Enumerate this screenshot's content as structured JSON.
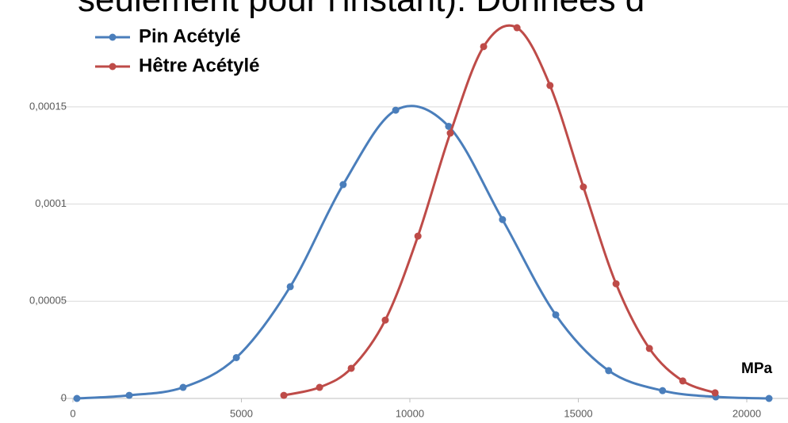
{
  "chart_data": {
    "type": "scatter",
    "caption": "seulement pour l'instant). Données d",
    "x_label": "MPa",
    "xlim": [
      0,
      21000
    ],
    "xticks": [
      0,
      5000,
      10000,
      15000,
      20000
    ],
    "ylim": [
      0,
      0.0002
    ],
    "yticks": [
      0,
      {
        "value": 5e-05,
        "label": "0,00005"
      },
      {
        "value": 0.0001,
        "label": "0,0001"
      },
      {
        "value": 0.00015,
        "label": "0,00015"
      }
    ],
    "grid": true,
    "legend": "top-left",
    "series": [
      {
        "name": "Pin Acétylé",
        "color": "#4a7ebb",
        "x": [
          118,
          1670,
          3270,
          4850,
          6450,
          8020,
          9580,
          11150,
          12750,
          14330,
          15900,
          17500,
          19080,
          20660
        ],
        "values": [
          0,
          1.6e-06,
          5.7e-06,
          2.1e-05,
          5.75e-05,
          0.00011,
          0.0001483,
          0.00014,
          9.2e-05,
          4.3e-05,
          1.43e-05,
          4e-06,
          8e-07,
          0
        ]
      },
      {
        "name": "Hêtre Acétylé",
        "color": "#be4b48",
        "x": [
          6260,
          7320,
          8260,
          9270,
          10240,
          11200,
          12190,
          13180,
          14160,
          15150,
          16120,
          17110,
          18100,
          19060
        ],
        "values": [
          1.6e-06,
          5.7e-06,
          1.55e-05,
          4.03e-05,
          8.35e-05,
          0.0001365,
          0.000181,
          0.0001907,
          0.000161,
          0.0001088,
          5.9e-05,
          2.57e-05,
          9e-06,
          2.9e-06
        ]
      }
    ]
  }
}
